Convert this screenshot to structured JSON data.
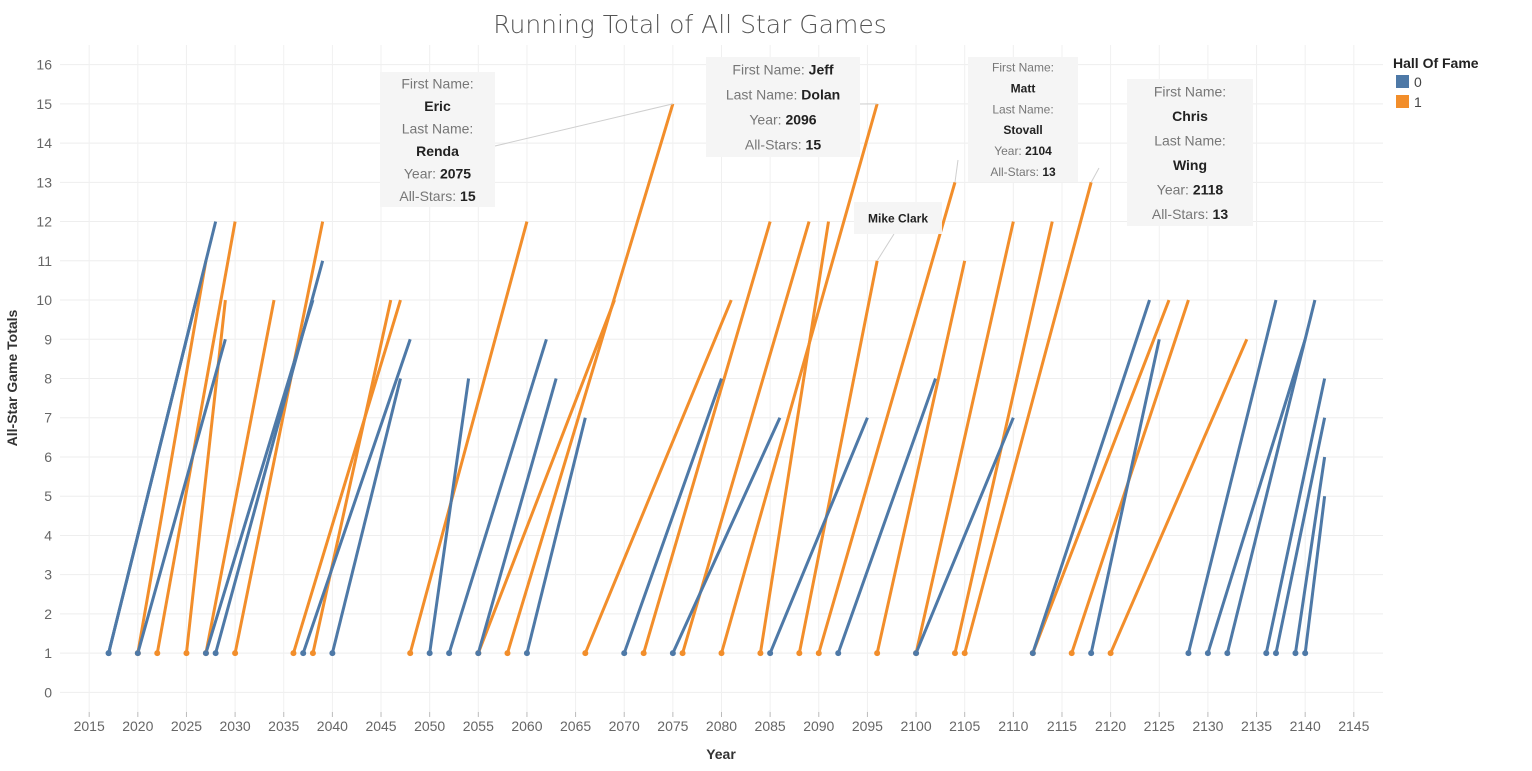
{
  "chart_data": {
    "type": "line",
    "title": "Running Total of All Star Games",
    "xlabel": "Year",
    "ylabel": "All-Star Game Totals",
    "xlim": [
      2012,
      2148
    ],
    "ylim": [
      -0.5,
      16.5
    ],
    "x_ticks": [
      2015,
      2020,
      2025,
      2030,
      2035,
      2040,
      2045,
      2050,
      2055,
      2060,
      2065,
      2070,
      2075,
      2080,
      2085,
      2090,
      2095,
      2100,
      2105,
      2110,
      2115,
      2120,
      2125,
      2130,
      2135,
      2140,
      2145
    ],
    "y_ticks": [
      0,
      1,
      2,
      3,
      4,
      5,
      6,
      7,
      8,
      9,
      10,
      11,
      12,
      13,
      14,
      15,
      16
    ],
    "grid": true,
    "legend": {
      "title": "Hall Of Fame",
      "position": "top-right",
      "entries": [
        {
          "label": "0",
          "color": "#4e79a7"
        },
        {
          "label": "1",
          "color": "#f28e2b"
        }
      ]
    },
    "series": [
      {
        "hof": 0,
        "x": [
          2017,
          2028
        ],
        "y": [
          1,
          12
        ]
      },
      {
        "hof": 0,
        "x": [
          2017,
          2026
        ],
        "y": [
          1,
          10
        ]
      },
      {
        "hof": 0,
        "x": [
          2020,
          2029
        ],
        "y": [
          1,
          9
        ]
      },
      {
        "hof": 0,
        "x": [
          2028,
          2039
        ],
        "y": [
          1,
          11
        ]
      },
      {
        "hof": 0,
        "x": [
          2027,
          2038
        ],
        "y": [
          1,
          10
        ]
      },
      {
        "hof": 0,
        "x": [
          2037,
          2048
        ],
        "y": [
          1,
          9
        ]
      },
      {
        "hof": 0,
        "x": [
          2040,
          2047
        ],
        "y": [
          1,
          8
        ]
      },
      {
        "hof": 0,
        "x": [
          2050,
          2054
        ],
        "y": [
          1,
          8
        ]
      },
      {
        "hof": 0,
        "x": [
          2052,
          2062
        ],
        "y": [
          1,
          9
        ]
      },
      {
        "hof": 0,
        "x": [
          2055,
          2063
        ],
        "y": [
          1,
          8
        ]
      },
      {
        "hof": 0,
        "x": [
          2060,
          2066
        ],
        "y": [
          1,
          7
        ]
      },
      {
        "hof": 0,
        "x": [
          2070,
          2080
        ],
        "y": [
          1,
          8
        ]
      },
      {
        "hof": 0,
        "x": [
          2075,
          2086
        ],
        "y": [
          1,
          7
        ]
      },
      {
        "hof": 0,
        "x": [
          2085,
          2095
        ],
        "y": [
          1,
          7
        ]
      },
      {
        "hof": 0,
        "x": [
          2092,
          2102
        ],
        "y": [
          1,
          8
        ]
      },
      {
        "hof": 0,
        "x": [
          2100,
          2110
        ],
        "y": [
          1,
          7
        ]
      },
      {
        "hof": 0,
        "x": [
          2112,
          2124
        ],
        "y": [
          1,
          10
        ]
      },
      {
        "hof": 0,
        "x": [
          2118,
          2125
        ],
        "y": [
          1,
          9
        ]
      },
      {
        "hof": 0,
        "x": [
          2128,
          2137
        ],
        "y": [
          1,
          10
        ]
      },
      {
        "hof": 0,
        "x": [
          2130,
          2140
        ],
        "y": [
          1,
          9
        ]
      },
      {
        "hof": 0,
        "x": [
          2132,
          2141
        ],
        "y": [
          1,
          10
        ]
      },
      {
        "hof": 0,
        "x": [
          2136,
          2142
        ],
        "y": [
          1,
          8
        ]
      },
      {
        "hof": 0,
        "x": [
          2137,
          2142
        ],
        "y": [
          1,
          7
        ]
      },
      {
        "hof": 0,
        "x": [
          2139,
          2142
        ],
        "y": [
          1,
          6
        ]
      },
      {
        "hof": 0,
        "x": [
          2140,
          2142
        ],
        "y": [
          1,
          5
        ]
      },
      {
        "hof": 1,
        "x": [
          2020,
          2027
        ],
        "y": [
          1,
          11
        ]
      },
      {
        "hof": 1,
        "x": [
          2022,
          2030
        ],
        "y": [
          1,
          12
        ]
      },
      {
        "hof": 1,
        "x": [
          2025,
          2029
        ],
        "y": [
          1,
          10
        ]
      },
      {
        "hof": 1,
        "x": [
          2027,
          2034
        ],
        "y": [
          1,
          10
        ]
      },
      {
        "hof": 1,
        "x": [
          2030,
          2039
        ],
        "y": [
          1,
          12
        ]
      },
      {
        "hof": 1,
        "x": [
          2036,
          2047
        ],
        "y": [
          1,
          10
        ]
      },
      {
        "hof": 1,
        "x": [
          2038,
          2046
        ],
        "y": [
          1,
          10
        ]
      },
      {
        "hof": 1,
        "x": [
          2048,
          2060
        ],
        "y": [
          1,
          12
        ]
      },
      {
        "hof": 1,
        "x": [
          2055,
          2069
        ],
        "y": [
          1,
          10
        ]
      },
      {
        "hof": 1,
        "x": [
          2058,
          2075
        ],
        "y": [
          1,
          15
        ]
      },
      {
        "hof": 1,
        "x": [
          2066,
          2081
        ],
        "y": [
          1,
          10
        ]
      },
      {
        "hof": 1,
        "x": [
          2072,
          2085
        ],
        "y": [
          1,
          12
        ]
      },
      {
        "hof": 1,
        "x": [
          2076,
          2089
        ],
        "y": [
          1,
          12
        ]
      },
      {
        "hof": 1,
        "x": [
          2080,
          2096
        ],
        "y": [
          1,
          15
        ]
      },
      {
        "hof": 1,
        "x": [
          2084,
          2091
        ],
        "y": [
          1,
          12
        ]
      },
      {
        "hof": 1,
        "x": [
          2088,
          2096
        ],
        "y": [
          1,
          11
        ]
      },
      {
        "hof": 1,
        "x": [
          2090,
          2104
        ],
        "y": [
          1,
          13
        ]
      },
      {
        "hof": 1,
        "x": [
          2096,
          2105
        ],
        "y": [
          1,
          11
        ]
      },
      {
        "hof": 1,
        "x": [
          2100,
          2110
        ],
        "y": [
          1,
          12
        ]
      },
      {
        "hof": 1,
        "x": [
          2104,
          2114
        ],
        "y": [
          1,
          12
        ]
      },
      {
        "hof": 1,
        "x": [
          2105,
          2118
        ],
        "y": [
          1,
          13
        ]
      },
      {
        "hof": 1,
        "x": [
          2112,
          2126
        ],
        "y": [
          1,
          10
        ]
      },
      {
        "hof": 1,
        "x": [
          2116,
          2128
        ],
        "y": [
          1,
          10
        ]
      },
      {
        "hof": 1,
        "x": [
          2120,
          2134
        ],
        "y": [
          1,
          9
        ]
      }
    ],
    "annotations": [
      {
        "lines": [
          {
            "key": "First Name:",
            "val": ""
          },
          {
            "key": "",
            "val": "Eric"
          },
          {
            "key": "Last Name:",
            "val": ""
          },
          {
            "key": "",
            "val": "Renda"
          },
          {
            "key": "Year:",
            "val": "2075"
          },
          {
            "key": "All-Stars:",
            "val": "15"
          }
        ],
        "x": 2075,
        "y": 15
      },
      {
        "lines": [
          {
            "key": "First Name:",
            "val": "Jeff"
          },
          {
            "key": "Last Name:",
            "val": "Dolan"
          },
          {
            "key": "Year:",
            "val": "2096"
          },
          {
            "key": "All-Stars:",
            "val": "15"
          }
        ],
        "x": 2096,
        "y": 15
      },
      {
        "lines": [
          {
            "key": "First Name:",
            "val": ""
          },
          {
            "key": "",
            "val": "Matt"
          },
          {
            "key": "Last Name:",
            "val": ""
          },
          {
            "key": "",
            "val": "Stovall"
          },
          {
            "key": "Year:",
            "val": "2104"
          },
          {
            "key": "All-Stars:",
            "val": "13"
          }
        ],
        "x": 2104,
        "y": 13
      },
      {
        "lines": [
          {
            "key": "First Name:",
            "val": ""
          },
          {
            "key": "",
            "val": "Chris"
          },
          {
            "key": "Last Name:",
            "val": ""
          },
          {
            "key": "",
            "val": "Wing"
          },
          {
            "key": "Year:",
            "val": "2118"
          },
          {
            "key": "All-Stars:",
            "val": "13"
          }
        ],
        "x": 2118,
        "y": 13
      },
      {
        "lines": [
          {
            "key": "",
            "val": "Mike Clark"
          }
        ],
        "x": 2096,
        "y": 11
      }
    ]
  }
}
